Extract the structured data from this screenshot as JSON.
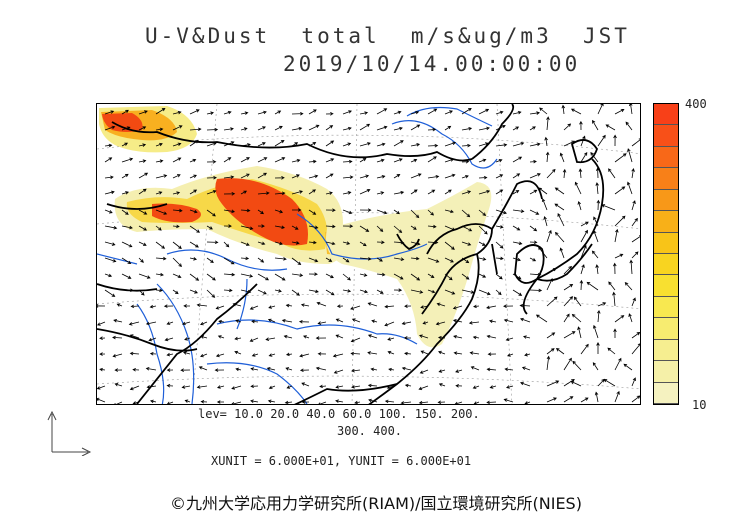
{
  "title": {
    "line1": "U-V&Dust  total  m/s&ug/m3  JST",
    "line2": "2019/10/14.00:00:00"
  },
  "colorbar": {
    "max_label": "400",
    "min_label": "10",
    "colors": [
      "#f5f2c0",
      "#f5f0a8",
      "#f6ee90",
      "#f7ec70",
      "#f8e850",
      "#f8e030",
      "#f8d420",
      "#f8c418",
      "#f8b018",
      "#f89818",
      "#f88018",
      "#f86818",
      "#f85018",
      "#f84018"
    ]
  },
  "levels": {
    "line1": "lev= 10.0 20.0 40.0 60.0 100. 150. 200.",
    "line2": "300. 400."
  },
  "units": "XUNIT = 6.000E+01, YUNIT = 6.000E+01",
  "credit": "©九州大学応用力学研究所(RIAM)/国立環境研究所(NIES)",
  "colors": {
    "coast": "#000000",
    "river": "#1f5fd8",
    "grid": "#888888",
    "dust_low": "#f4f0b8",
    "dust_high": "#f24a12"
  }
}
